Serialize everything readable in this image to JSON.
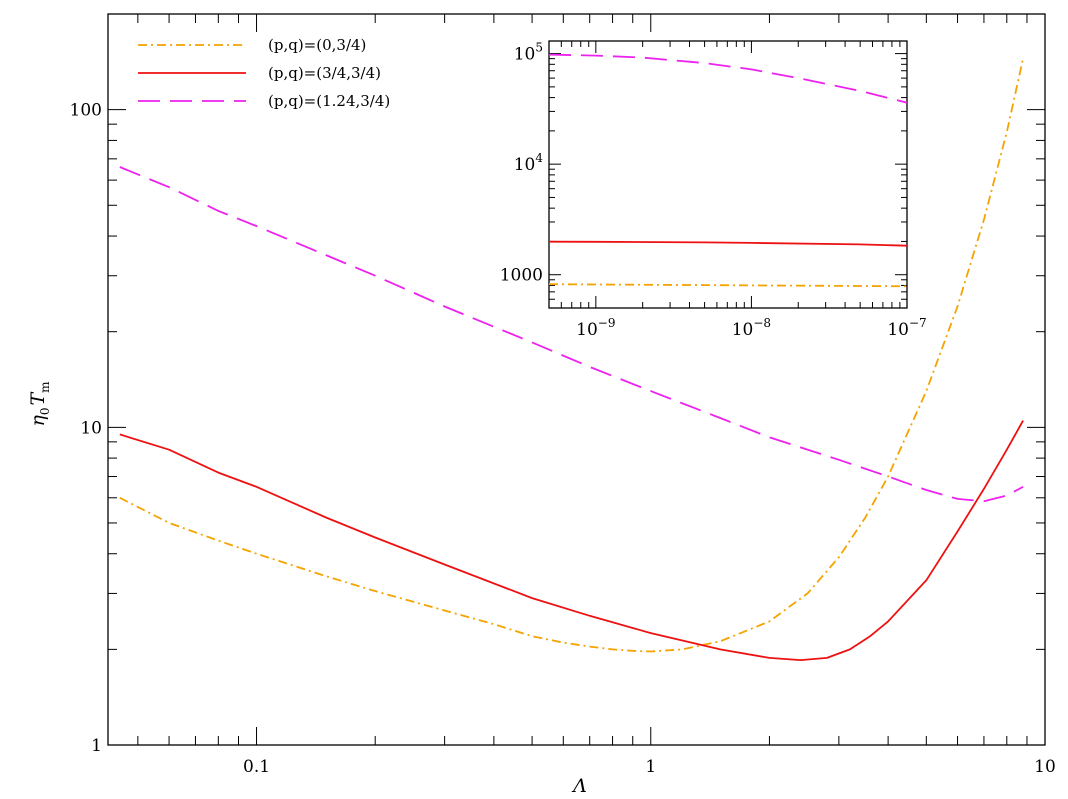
{
  "chart_data": [
    {
      "type": "line",
      "xlabel": "Λ",
      "ylabel_main": "η",
      "ylabel_sub0": "0",
      "ylabel_T": "T",
      "ylabel_subm": "m",
      "xscale": "log",
      "yscale": "log",
      "xlim": [
        0.042,
        10
      ],
      "ylim": [
        1,
        200
      ],
      "x_ticks": [
        {
          "value": 0.1,
          "label": "0.1"
        },
        {
          "value": 1,
          "label": "1"
        },
        {
          "value": 10,
          "label": "10"
        }
      ],
      "y_ticks": [
        {
          "value": 1,
          "label": "1"
        },
        {
          "value": 10,
          "label": "10"
        },
        {
          "value": 100,
          "label": "100"
        }
      ],
      "legend_position": "top-left",
      "series": [
        {
          "name": "(p,q)=(0,3/4)",
          "color": "#f5a300",
          "style": "dashdot",
          "points": [
            [
              0.045,
              6.0
            ],
            [
              0.06,
              5.0
            ],
            [
              0.08,
              4.4
            ],
            [
              0.1,
              4.0
            ],
            [
              0.15,
              3.4
            ],
            [
              0.2,
              3.05
            ],
            [
              0.3,
              2.65
            ],
            [
              0.4,
              2.4
            ],
            [
              0.5,
              2.2
            ],
            [
              0.6,
              2.1
            ],
            [
              0.7,
              2.04
            ],
            [
              0.8,
              2.0
            ],
            [
              0.9,
              1.98
            ],
            [
              1.0,
              1.97
            ],
            [
              1.2,
              2.0
            ],
            [
              1.5,
              2.12
            ],
            [
              2.0,
              2.45
            ],
            [
              2.5,
              3.0
            ],
            [
              3.0,
              3.9
            ],
            [
              3.5,
              5.2
            ],
            [
              4.0,
              7.0
            ],
            [
              5.0,
              13.0
            ],
            [
              6.0,
              24.0
            ],
            [
              7.0,
              45.0
            ],
            [
              8.0,
              85.0
            ],
            [
              8.8,
              145.0
            ]
          ]
        },
        {
          "name": "(p,q)=(3/4,3/4)",
          "color": "#ee1111",
          "style": "solid",
          "points": [
            [
              0.045,
              9.5
            ],
            [
              0.06,
              8.5
            ],
            [
              0.08,
              7.2
            ],
            [
              0.1,
              6.5
            ],
            [
              0.15,
              5.2
            ],
            [
              0.2,
              4.5
            ],
            [
              0.3,
              3.7
            ],
            [
              0.5,
              2.9
            ],
            [
              0.7,
              2.55
            ],
            [
              1.0,
              2.25
            ],
            [
              1.5,
              2.0
            ],
            [
              2.0,
              1.88
            ],
            [
              2.4,
              1.85
            ],
            [
              2.8,
              1.88
            ],
            [
              3.2,
              2.0
            ],
            [
              3.6,
              2.2
            ],
            [
              4.0,
              2.45
            ],
            [
              5.0,
              3.3
            ],
            [
              6.0,
              4.7
            ],
            [
              7.0,
              6.4
            ],
            [
              8.0,
              8.5
            ],
            [
              8.8,
              10.5
            ]
          ]
        },
        {
          "name": "(p,q)=(1.24,3/4)",
          "color": "#ee22ee",
          "style": "dashed",
          "points": [
            [
              0.045,
              66.0
            ],
            [
              0.06,
              57.0
            ],
            [
              0.08,
              48.0
            ],
            [
              0.1,
              43.0
            ],
            [
              0.2,
              30.0
            ],
            [
              0.3,
              24.0
            ],
            [
              0.5,
              18.5
            ],
            [
              0.7,
              15.5
            ],
            [
              1.0,
              13.0
            ],
            [
              1.5,
              10.7
            ],
            [
              2.0,
              9.3
            ],
            [
              3.0,
              7.9
            ],
            [
              4.0,
              7.0
            ],
            [
              5.0,
              6.35
            ],
            [
              6.0,
              5.95
            ],
            [
              7.0,
              5.85
            ],
            [
              8.0,
              6.1
            ],
            [
              8.8,
              6.5
            ]
          ]
        }
      ]
    },
    {
      "type": "line",
      "role": "inset",
      "xscale": "log",
      "yscale": "log",
      "xlim": [
        5e-10,
        1e-07
      ],
      "ylim": [
        500,
        130000
      ],
      "x_ticks": [
        {
          "value": 1e-09,
          "base": "10",
          "exp": "−9"
        },
        {
          "value": 1e-08,
          "base": "10",
          "exp": "−8"
        },
        {
          "value": 1e-07,
          "base": "10",
          "exp": "−7"
        }
      ],
      "y_ticks": [
        {
          "value": 1000,
          "label": "1000"
        },
        {
          "value": 10000,
          "base": "10",
          "exp": "4"
        },
        {
          "value": 100000,
          "base": "10",
          "exp": "5"
        }
      ],
      "series": [
        {
          "name": "(p,q)=(0,3/4)",
          "color": "#f5a300",
          "style": "dashdot",
          "points": [
            [
              5e-10,
              820
            ],
            [
              1e-09,
              815
            ],
            [
              5e-09,
              805
            ],
            [
              1e-08,
              800
            ],
            [
              5e-08,
              790
            ],
            [
              1e-07,
              785
            ]
          ]
        },
        {
          "name": "(p,q)=(3/4,3/4)",
          "color": "#ee1111",
          "style": "solid",
          "points": [
            [
              5e-10,
              1990
            ],
            [
              1e-09,
              1985
            ],
            [
              5e-09,
              1960
            ],
            [
              1e-08,
              1940
            ],
            [
              5e-08,
              1880
            ],
            [
              1e-07,
              1830
            ]
          ]
        },
        {
          "name": "(p,q)=(1.24,3/4)",
          "color": "#ee22ee",
          "style": "dashed",
          "points": [
            [
              5e-10,
              98000
            ],
            [
              1e-09,
              96000
            ],
            [
              2e-09,
              92000
            ],
            [
              5e-09,
              82000
            ],
            [
              1e-08,
              72000
            ],
            [
              2e-08,
              60000
            ],
            [
              5e-08,
              46000
            ],
            [
              1e-07,
              36000
            ]
          ]
        }
      ]
    }
  ]
}
